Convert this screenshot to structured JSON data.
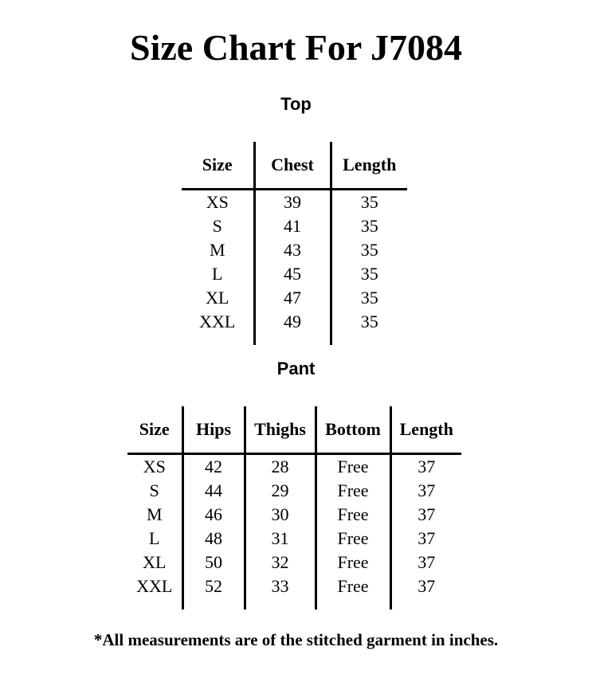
{
  "title": "Size Chart For J7084",
  "top": {
    "heading": "Top",
    "headers": [
      "Size",
      "Chest",
      "Length"
    ],
    "rows": [
      [
        "XS",
        "39",
        "35"
      ],
      [
        "S",
        "41",
        "35"
      ],
      [
        "M",
        "43",
        "35"
      ],
      [
        "L",
        "45",
        "35"
      ],
      [
        "XL",
        "47",
        "35"
      ],
      [
        "XXL",
        "49",
        "35"
      ]
    ]
  },
  "pant": {
    "heading": "Pant",
    "headers": [
      "Size",
      "Hips",
      "Thighs",
      "Bottom",
      "Length"
    ],
    "rows": [
      [
        "XS",
        "42",
        "28",
        "Free",
        "37"
      ],
      [
        "S",
        "44",
        "29",
        "Free",
        "37"
      ],
      [
        "M",
        "46",
        "30",
        "Free",
        "37"
      ],
      [
        "L",
        "48",
        "31",
        "Free",
        "37"
      ],
      [
        "XL",
        "50",
        "32",
        "Free",
        "37"
      ],
      [
        "XXL",
        "52",
        "33",
        "Free",
        "37"
      ]
    ]
  },
  "footer": "*All measurements are of the stitched garment in inches."
}
